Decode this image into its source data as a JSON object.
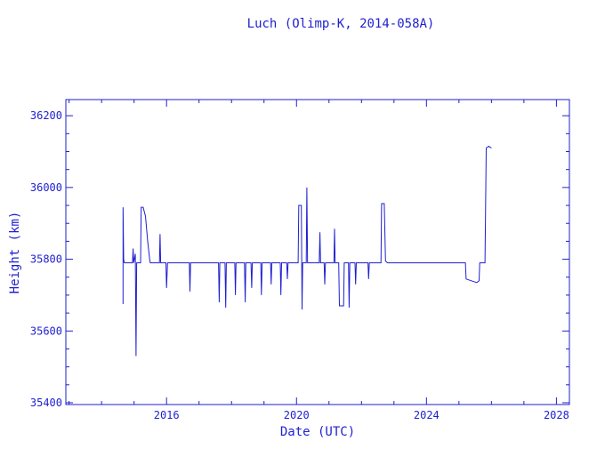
{
  "chart_data": {
    "type": "line",
    "title": "Luch (Olimp-K, 2014-058A)",
    "xlabel": "Date (UTC)",
    "ylabel": "Height (km)",
    "xlim": [
      2012.9,
      2028.4
    ],
    "ylim": [
      35395,
      36245
    ],
    "x_ticks": [
      2016,
      2020,
      2024,
      2028
    ],
    "x_tick_labels": [
      "2016",
      "2020",
      "2024",
      "2028"
    ],
    "y_ticks": [
      35400,
      35600,
      35800,
      36000,
      36200
    ],
    "y_tick_labels": [
      "35400",
      "35600",
      "35800",
      "36000",
      "36200"
    ],
    "grid": false,
    "line_color": "#1f1fd0",
    "series": [
      {
        "values": [
          [
            2014.66,
            35675
          ],
          [
            2014.66,
            35945
          ],
          [
            2014.68,
            35800
          ],
          [
            2014.7,
            35790
          ],
          [
            2014.95,
            35790
          ],
          [
            2014.97,
            35830
          ],
          [
            2014.99,
            35790
          ],
          [
            2015.04,
            35815
          ],
          [
            2015.06,
            35530
          ],
          [
            2015.08,
            35790
          ],
          [
            2015.2,
            35790
          ],
          [
            2015.22,
            35945
          ],
          [
            2015.28,
            35945
          ],
          [
            2015.35,
            35920
          ],
          [
            2015.42,
            35850
          ],
          [
            2015.48,
            35800
          ],
          [
            2015.5,
            35790
          ],
          [
            2015.78,
            35790
          ],
          [
            2015.8,
            35870
          ],
          [
            2015.82,
            35790
          ],
          [
            2015.98,
            35790
          ],
          [
            2016.0,
            35720
          ],
          [
            2016.03,
            35790
          ],
          [
            2016.7,
            35790
          ],
          [
            2016.72,
            35710
          ],
          [
            2016.74,
            35790
          ],
          [
            2017.6,
            35790
          ],
          [
            2017.62,
            35680
          ],
          [
            2017.64,
            35790
          ],
          [
            2017.8,
            35790
          ],
          [
            2017.82,
            35665
          ],
          [
            2017.84,
            35790
          ],
          [
            2018.1,
            35790
          ],
          [
            2018.12,
            35700
          ],
          [
            2018.14,
            35790
          ],
          [
            2018.4,
            35790
          ],
          [
            2018.42,
            35680
          ],
          [
            2018.44,
            35790
          ],
          [
            2018.6,
            35790
          ],
          [
            2018.62,
            35720
          ],
          [
            2018.64,
            35790
          ],
          [
            2018.9,
            35790
          ],
          [
            2018.92,
            35700
          ],
          [
            2018.94,
            35790
          ],
          [
            2019.2,
            35790
          ],
          [
            2019.22,
            35730
          ],
          [
            2019.24,
            35790
          ],
          [
            2019.5,
            35790
          ],
          [
            2019.52,
            35700
          ],
          [
            2019.54,
            35790
          ],
          [
            2019.7,
            35790
          ],
          [
            2019.72,
            35745
          ],
          [
            2019.74,
            35790
          ],
          [
            2020.05,
            35790
          ],
          [
            2020.07,
            35950
          ],
          [
            2020.15,
            35950
          ],
          [
            2020.17,
            35660
          ],
          [
            2020.19,
            35790
          ],
          [
            2020.3,
            35790
          ],
          [
            2020.32,
            36000
          ],
          [
            2020.34,
            35790
          ],
          [
            2020.7,
            35790
          ],
          [
            2020.72,
            35875
          ],
          [
            2020.74,
            35790
          ],
          [
            2020.85,
            35790
          ],
          [
            2020.87,
            35730
          ],
          [
            2020.89,
            35790
          ],
          [
            2021.15,
            35790
          ],
          [
            2021.17,
            35885
          ],
          [
            2021.19,
            35790
          ],
          [
            2021.3,
            35790
          ],
          [
            2021.32,
            35670
          ],
          [
            2021.45,
            35670
          ],
          [
            2021.47,
            35790
          ],
          [
            2021.6,
            35790
          ],
          [
            2021.62,
            35665
          ],
          [
            2021.64,
            35790
          ],
          [
            2021.8,
            35790
          ],
          [
            2021.82,
            35730
          ],
          [
            2021.84,
            35790
          ],
          [
            2022.2,
            35790
          ],
          [
            2022.22,
            35745
          ],
          [
            2022.24,
            35790
          ],
          [
            2022.6,
            35790
          ],
          [
            2022.62,
            35955
          ],
          [
            2022.7,
            35955
          ],
          [
            2022.74,
            35795
          ],
          [
            2022.8,
            35790
          ],
          [
            2025.2,
            35790
          ],
          [
            2025.22,
            35745
          ],
          [
            2025.55,
            35735
          ],
          [
            2025.62,
            35740
          ],
          [
            2025.64,
            35790
          ],
          [
            2025.8,
            35790
          ],
          [
            2025.84,
            36110
          ],
          [
            2025.92,
            36115
          ],
          [
            2026.0,
            36110
          ]
        ]
      }
    ]
  }
}
